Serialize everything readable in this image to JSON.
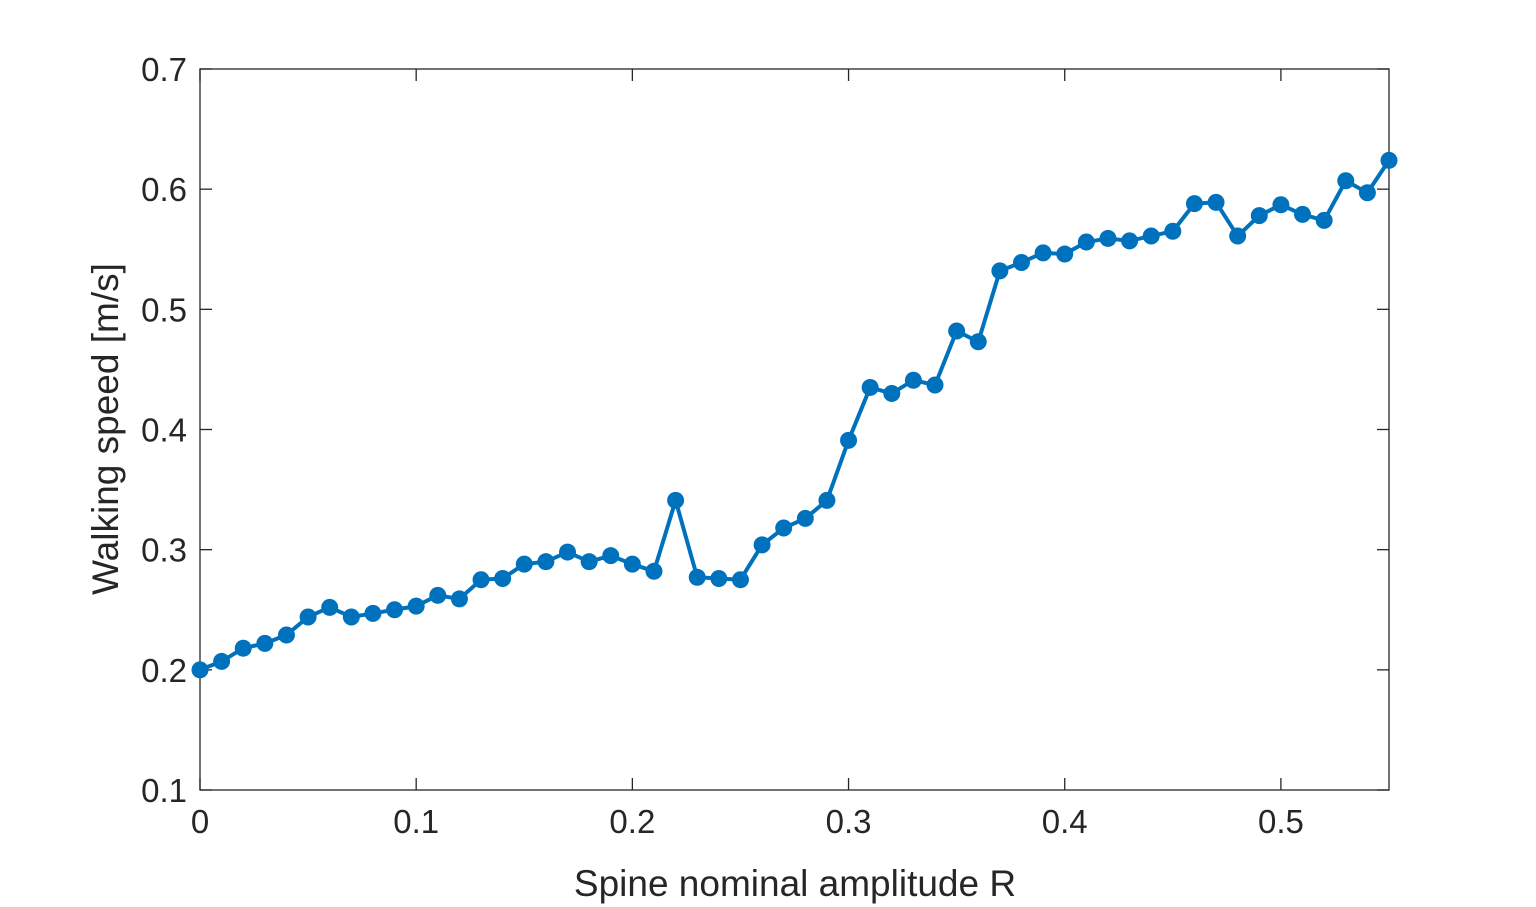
{
  "chart_data": {
    "type": "line",
    "xlabel": "Spine nominal amplitude R",
    "ylabel": "Walking speed [m/s]",
    "xlim": [
      0,
      0.55
    ],
    "ylim": [
      0.1,
      0.7
    ],
    "xticks": [
      0,
      0.1,
      0.2,
      0.3,
      0.4,
      0.5
    ],
    "yticks": [
      0.1,
      0.2,
      0.3,
      0.4,
      0.5,
      0.6,
      0.7
    ],
    "xtick_labels": [
      "0",
      "0.1",
      "0.2",
      "0.3",
      "0.4",
      "0.5"
    ],
    "ytick_labels": [
      "0.1",
      "0.2",
      "0.3",
      "0.4",
      "0.5",
      "0.6",
      "0.7"
    ],
    "grid": false,
    "series": [
      {
        "color": "#0072BD",
        "marker": "circle",
        "x": [
          0,
          0.01,
          0.02,
          0.03,
          0.04,
          0.05,
          0.06,
          0.07,
          0.08,
          0.09,
          0.1,
          0.11,
          0.12,
          0.13,
          0.14,
          0.15,
          0.16,
          0.17,
          0.18,
          0.19,
          0.2,
          0.21,
          0.22,
          0.23,
          0.24,
          0.25,
          0.26,
          0.27,
          0.28,
          0.29,
          0.3,
          0.31,
          0.32,
          0.33,
          0.34,
          0.35,
          0.36,
          0.37,
          0.38,
          0.39,
          0.4,
          0.41,
          0.42,
          0.43,
          0.44,
          0.45,
          0.46,
          0.47,
          0.48,
          0.49,
          0.5,
          0.51,
          0.52,
          0.53,
          0.54,
          0.55
        ],
        "y": [
          0.2,
          0.207,
          0.218,
          0.222,
          0.229,
          0.244,
          0.252,
          0.244,
          0.247,
          0.25,
          0.253,
          0.262,
          0.259,
          0.275,
          0.276,
          0.288,
          0.29,
          0.298,
          0.29,
          0.295,
          0.288,
          0.282,
          0.341,
          0.277,
          0.276,
          0.275,
          0.304,
          0.318,
          0.326,
          0.341,
          0.391,
          0.435,
          0.43,
          0.441,
          0.437,
          0.482,
          0.473,
          0.532,
          0.539,
          0.547,
          0.546,
          0.556,
          0.559,
          0.557,
          0.561,
          0.565,
          0.588,
          0.589,
          0.561,
          0.578,
          0.587,
          0.579,
          0.574,
          0.607,
          0.597,
          0.624
        ]
      }
    ]
  }
}
